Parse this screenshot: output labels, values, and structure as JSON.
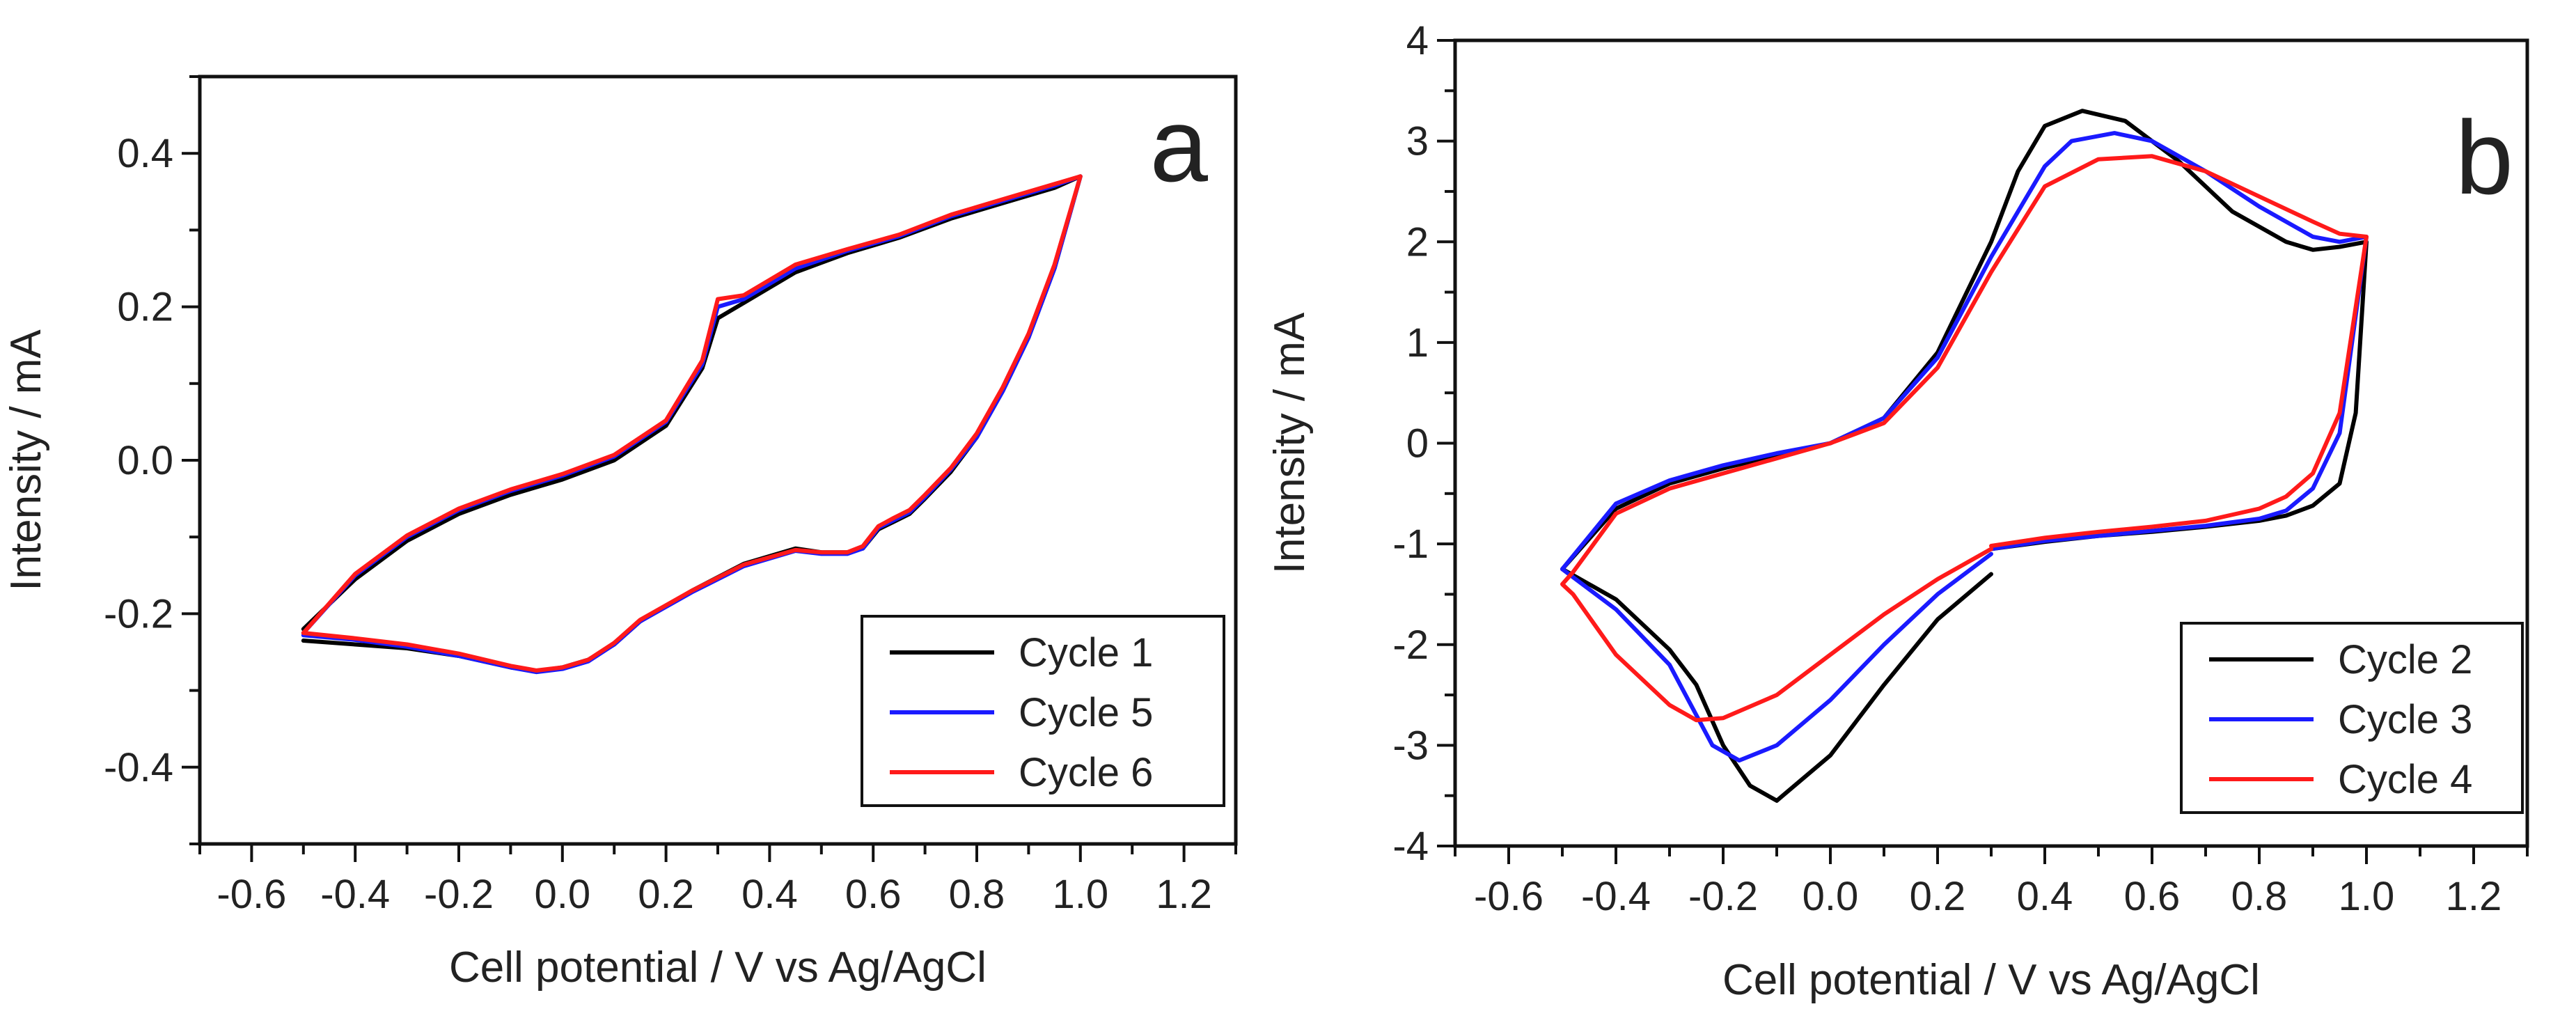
{
  "chart_data": [
    {
      "type": "line",
      "panel_label": "a",
      "xlabel": "Cell potential / V vs Ag/AgCl",
      "ylabel": "Intensity / mA",
      "xlim": [
        -0.7,
        1.3
      ],
      "ylim": [
        -0.5,
        0.5
      ],
      "xticks": [
        -0.6,
        -0.4,
        -0.2,
        0.0,
        0.2,
        0.4,
        0.6,
        0.8,
        1.0,
        1.2
      ],
      "xtick_labels": [
        "-0.6",
        "-0.4",
        "-0.2",
        "0.0",
        "0.2",
        "0.4",
        "0.6",
        "0.8",
        "1.0",
        "1.2"
      ],
      "yticks": [
        -0.4,
        -0.2,
        0.0,
        0.2,
        0.4
      ],
      "ytick_labels": [
        "-0.4",
        "-0.2",
        "0.0",
        "0.2",
        "0.4"
      ],
      "legend_position": "bottom-right",
      "series": [
        {
          "name": "Cycle 1",
          "color": "#000000",
          "x": [
            -0.5,
            -0.4,
            -0.3,
            -0.2,
            -0.1,
            0.0,
            0.1,
            0.2,
            0.27,
            0.3,
            0.35,
            0.45,
            0.55,
            0.65,
            0.75,
            0.85,
            0.95,
            1.0,
            0.95,
            0.9,
            0.85,
            0.8,
            0.75,
            0.7,
            0.67,
            0.64,
            0.61,
            0.58,
            0.55,
            0.5,
            0.45,
            0.35,
            0.25,
            0.15,
            0.1,
            0.05,
            0.0,
            -0.05,
            -0.1,
            -0.2,
            -0.3,
            -0.4,
            -0.5
          ],
          "y": [
            -0.22,
            -0.155,
            -0.105,
            -0.07,
            -0.045,
            -0.025,
            0.0,
            0.045,
            0.12,
            0.185,
            0.205,
            0.245,
            0.27,
            0.29,
            0.315,
            0.335,
            0.355,
            0.37,
            0.25,
            0.16,
            0.09,
            0.03,
            -0.015,
            -0.05,
            -0.07,
            -0.08,
            -0.09,
            -0.115,
            -0.12,
            -0.12,
            -0.115,
            -0.135,
            -0.17,
            -0.21,
            -0.24,
            -0.26,
            -0.27,
            -0.275,
            -0.27,
            -0.255,
            -0.245,
            -0.24,
            -0.235
          ]
        },
        {
          "name": "Cycle 5",
          "color": "#1a1aff",
          "x": [
            -0.5,
            -0.4,
            -0.3,
            -0.2,
            -0.1,
            0.0,
            0.1,
            0.2,
            0.27,
            0.3,
            0.35,
            0.45,
            0.55,
            0.65,
            0.75,
            0.85,
            0.95,
            1.0,
            0.95,
            0.9,
            0.85,
            0.8,
            0.75,
            0.7,
            0.67,
            0.64,
            0.61,
            0.58,
            0.55,
            0.5,
            0.45,
            0.35,
            0.25,
            0.15,
            0.1,
            0.05,
            0.0,
            -0.05,
            -0.1,
            -0.2,
            -0.3,
            -0.4,
            -0.5
          ],
          "y": [
            -0.225,
            -0.15,
            -0.1,
            -0.065,
            -0.04,
            -0.02,
            0.005,
            0.05,
            0.125,
            0.2,
            0.21,
            0.25,
            0.273,
            0.292,
            0.318,
            0.338,
            0.358,
            0.37,
            0.25,
            0.16,
            0.09,
            0.03,
            -0.012,
            -0.048,
            -0.068,
            -0.078,
            -0.088,
            -0.115,
            -0.122,
            -0.122,
            -0.118,
            -0.138,
            -0.172,
            -0.21,
            -0.24,
            -0.262,
            -0.272,
            -0.276,
            -0.27,
            -0.255,
            -0.243,
            -0.234,
            -0.228
          ]
        },
        {
          "name": "Cycle 6",
          "color": "#ff1a1a",
          "x": [
            -0.5,
            -0.4,
            -0.3,
            -0.2,
            -0.1,
            0.0,
            0.1,
            0.2,
            0.27,
            0.3,
            0.35,
            0.45,
            0.55,
            0.65,
            0.75,
            0.85,
            0.95,
            1.0,
            0.95,
            0.9,
            0.85,
            0.8,
            0.75,
            0.7,
            0.67,
            0.64,
            0.61,
            0.58,
            0.55,
            0.5,
            0.45,
            0.35,
            0.25,
            0.15,
            0.1,
            0.05,
            0.0,
            -0.05,
            -0.1,
            -0.2,
            -0.3,
            -0.4,
            -0.5
          ],
          "y": [
            -0.225,
            -0.148,
            -0.098,
            -0.063,
            -0.038,
            -0.018,
            0.007,
            0.052,
            0.13,
            0.21,
            0.215,
            0.255,
            0.275,
            0.294,
            0.32,
            0.34,
            0.36,
            0.37,
            0.255,
            0.165,
            0.095,
            0.035,
            -0.01,
            -0.045,
            -0.065,
            -0.075,
            -0.086,
            -0.112,
            -0.12,
            -0.12,
            -0.117,
            -0.136,
            -0.17,
            -0.208,
            -0.238,
            -0.26,
            -0.27,
            -0.274,
            -0.268,
            -0.252,
            -0.24,
            -0.232,
            -0.225
          ]
        }
      ]
    },
    {
      "type": "line",
      "panel_label": "b",
      "xlabel": "Cell potential / V vs Ag/AgCl",
      "ylabel": "Intensity / mA",
      "xlim": [
        -0.7,
        1.3
      ],
      "ylim": [
        -4,
        4
      ],
      "xticks": [
        -0.6,
        -0.4,
        -0.2,
        0.0,
        0.2,
        0.4,
        0.6,
        0.8,
        1.0,
        1.2
      ],
      "xtick_labels": [
        "-0.6",
        "-0.4",
        "-0.2",
        "0.0",
        "0.2",
        "0.4",
        "0.6",
        "0.8",
        "1.0",
        "1.2"
      ],
      "yticks": [
        -4,
        -3,
        -2,
        -1,
        0,
        1,
        2,
        3,
        4
      ],
      "ytick_labels": [
        "-4",
        "-3",
        "-2",
        "-1",
        "0",
        "1",
        "2",
        "3",
        "4"
      ],
      "legend_position": "bottom-right",
      "series": [
        {
          "name": "Cycle 2",
          "color": "#000000",
          "x": [
            0.3,
            0.2,
            0.1,
            0.0,
            -0.1,
            -0.15,
            -0.2,
            -0.25,
            -0.3,
            -0.4,
            -0.5,
            -0.4,
            -0.3,
            -0.2,
            -0.1,
            0.0,
            0.1,
            0.2,
            0.3,
            0.35,
            0.4,
            0.47,
            0.55,
            0.65,
            0.75,
            0.85,
            0.9,
            0.95,
            1.0,
            0.98,
            0.95,
            0.9,
            0.85,
            0.8,
            0.7,
            0.6,
            0.5,
            0.4,
            0.3
          ],
          "y": [
            -1.3,
            -1.75,
            -2.4,
            -3.1,
            -3.55,
            -3.4,
            -3.0,
            -2.4,
            -2.05,
            -1.55,
            -1.25,
            -0.65,
            -0.4,
            -0.25,
            -0.12,
            0.0,
            0.25,
            0.9,
            2.0,
            2.7,
            3.15,
            3.3,
            3.2,
            2.8,
            2.3,
            2.0,
            1.92,
            1.95,
            2.0,
            0.3,
            -0.4,
            -0.62,
            -0.72,
            -0.77,
            -0.83,
            -0.88,
            -0.92,
            -0.98,
            -1.05
          ]
        },
        {
          "name": "Cycle 3",
          "color": "#1a1aff",
          "x": [
            0.3,
            0.2,
            0.1,
            0.0,
            -0.1,
            -0.17,
            -0.22,
            -0.3,
            -0.4,
            -0.5,
            -0.4,
            -0.3,
            -0.2,
            -0.1,
            0.0,
            0.1,
            0.2,
            0.3,
            0.4,
            0.45,
            0.53,
            0.6,
            0.7,
            0.8,
            0.9,
            0.95,
            1.0,
            0.95,
            0.9,
            0.85,
            0.8,
            0.7,
            0.6,
            0.5,
            0.4,
            0.3
          ],
          "y": [
            -1.1,
            -1.5,
            -2.0,
            -2.55,
            -3.0,
            -3.15,
            -3.0,
            -2.2,
            -1.65,
            -1.25,
            -0.6,
            -0.37,
            -0.22,
            -0.1,
            0.0,
            0.25,
            0.85,
            1.85,
            2.75,
            3.0,
            3.08,
            3.0,
            2.7,
            2.35,
            2.05,
            2.0,
            2.05,
            0.1,
            -0.45,
            -0.67,
            -0.75,
            -0.82,
            -0.87,
            -0.92,
            -0.97,
            -1.05
          ]
        },
        {
          "name": "Cycle 4",
          "color": "#ff1a1a",
          "x": [
            0.3,
            0.2,
            0.1,
            0.0,
            -0.1,
            -0.2,
            -0.25,
            -0.3,
            -0.4,
            -0.48,
            -0.5,
            -0.48,
            -0.4,
            -0.3,
            -0.2,
            -0.1,
            0.0,
            0.1,
            0.2,
            0.3,
            0.4,
            0.5,
            0.6,
            0.7,
            0.8,
            0.9,
            0.95,
            1.0,
            0.95,
            0.9,
            0.85,
            0.8,
            0.7,
            0.6,
            0.5,
            0.4,
            0.3
          ],
          "y": [
            -1.05,
            -1.35,
            -1.7,
            -2.1,
            -2.5,
            -2.73,
            -2.75,
            -2.6,
            -2.1,
            -1.5,
            -1.4,
            -1.28,
            -0.7,
            -0.45,
            -0.3,
            -0.15,
            0.0,
            0.2,
            0.75,
            1.7,
            2.55,
            2.82,
            2.85,
            2.7,
            2.45,
            2.2,
            2.08,
            2.05,
            0.3,
            -0.3,
            -0.53,
            -0.65,
            -0.77,
            -0.83,
            -0.88,
            -0.94,
            -1.02
          ]
        }
      ]
    }
  ]
}
